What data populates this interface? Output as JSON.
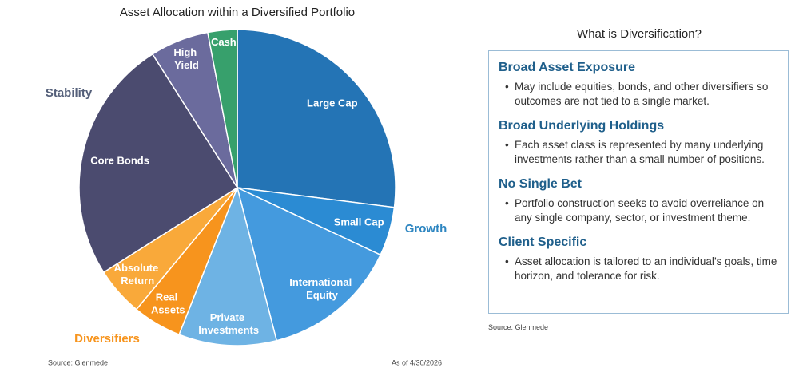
{
  "chart_data": {
    "type": "pie",
    "title": "Asset Allocation within a Diversified Portfolio",
    "categories": [
      "Large Cap",
      "Small Cap",
      "International Equity",
      "Private Investments",
      "Real Assets",
      "Absolute Return",
      "Core Bonds",
      "High Yield",
      "Cash"
    ],
    "values": [
      27,
      5,
      14,
      10,
      5,
      5,
      25,
      6,
      3
    ],
    "colors": [
      "#2474b5",
      "#2b8bd3",
      "#449ade",
      "#6eb3e4",
      "#f7941d",
      "#f9a93a",
      "#4b4b6f",
      "#6b6b9d",
      "#37a06c"
    ],
    "annotations": [
      {
        "text": "Growth",
        "color": "#2e86c1"
      },
      {
        "text": "Stability",
        "color": "#55607a"
      },
      {
        "text": "Diversifiers",
        "color": "#f7941d"
      }
    ],
    "source": "Source: Glenmede",
    "note": "As of 4/30/2026"
  },
  "panel": {
    "title": "What is Diversification?",
    "sections": [
      {
        "heading": "Broad Asset Exposure",
        "bullets": [
          "May include equities, bonds, and other diversifiers so outcomes are not tied to a single market."
        ]
      },
      {
        "heading": "Broad Underlying Holdings",
        "bullets": [
          "Each asset class is represented by many underlying investments rather than a small number of positions."
        ]
      },
      {
        "heading": "No Single Bet",
        "bullets": [
          "Portfolio construction seeks to avoid overreliance on any single company, sector, or investment theme."
        ]
      },
      {
        "heading": "Client Specific",
        "bullets": [
          "Asset allocation is tailored to an individual’s goals, time horizon, and tolerance for risk."
        ]
      }
    ],
    "source": "Source: Glenmede"
  }
}
